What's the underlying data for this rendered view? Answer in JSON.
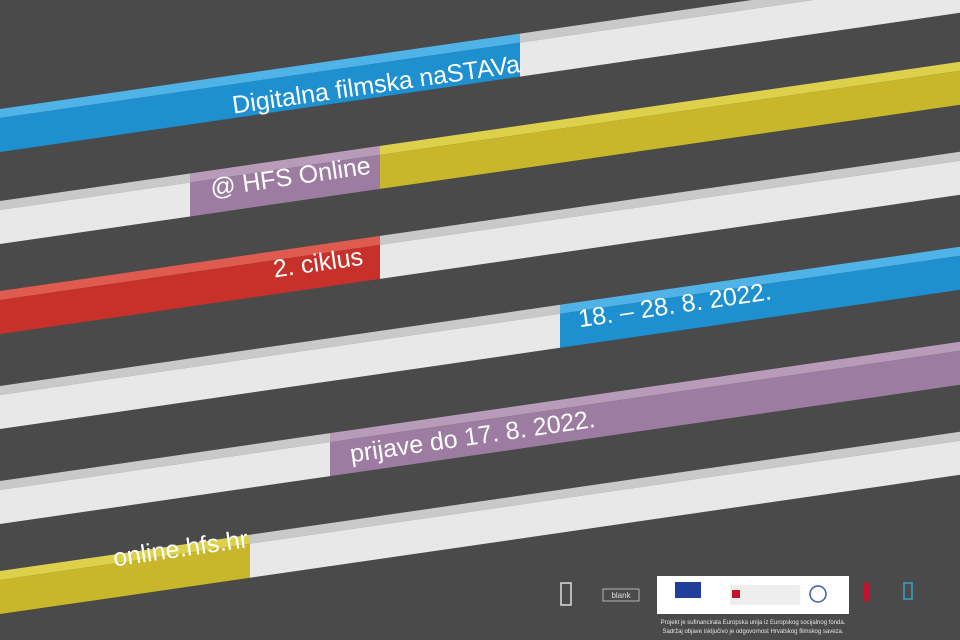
{
  "poster": {
    "lines": [
      "Digitalna filmska naSTAVa",
      "@ HFS Online",
      "2. ciklus",
      "18. – 28. 8. 2022.",
      "prijave do 17. 8. 2022.",
      "online.hfs.hr"
    ]
  },
  "footer": {
    "logo_text": "blank",
    "note": [
      "Projekt je sufinancirala Europska unija iz Europskog socijalnog fonda.",
      "Sadržaj objave isključivo je odgovornost Hrvatskog filmskog saveza."
    ]
  }
}
